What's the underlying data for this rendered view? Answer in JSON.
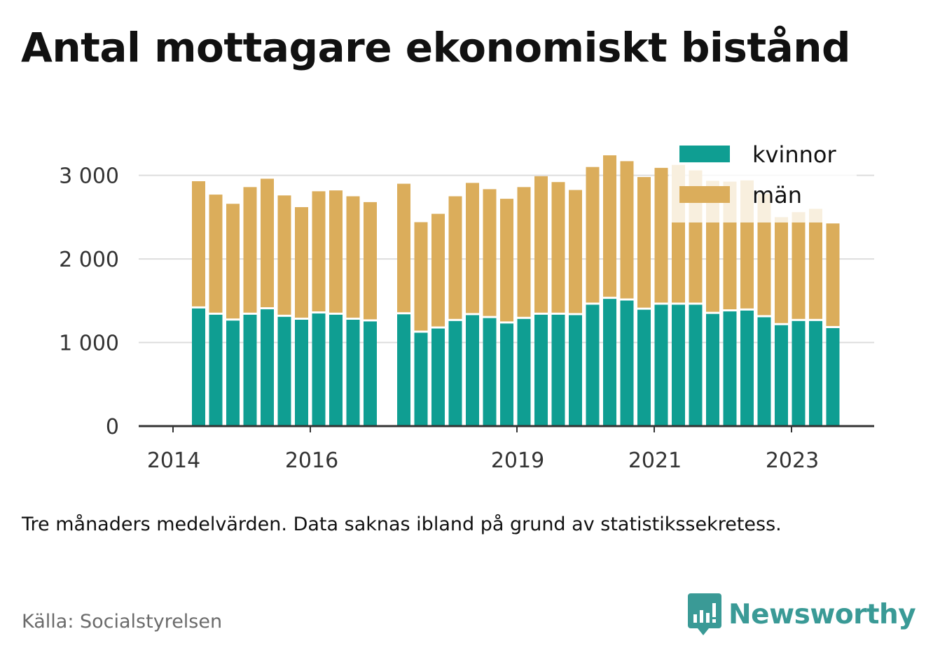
{
  "title": "Antal mottagare ekonomiskt bistånd",
  "note": "Tre månaders medelvärden. Data saknas ibland på grund av statistikssekretess.",
  "source": "Källa: Socialstyrelsen",
  "brand": {
    "name": "Newsworthy",
    "icon": "newsworthy-logo-icon",
    "color": "#3a9a96"
  },
  "colors": {
    "kvinnor": "#0f9e92",
    "man": "#dbad5b",
    "grid": "#dddddd",
    "axis": "#333333"
  },
  "chart_data": {
    "type": "bar",
    "stacked": true,
    "x_tick_labels": [
      "2014",
      "2016",
      "2019",
      "2021",
      "2023"
    ],
    "y_ticks": [
      0,
      1000,
      2000,
      3000
    ],
    "y_tick_labels": [
      "0",
      "1 000",
      "2 000",
      "3 000"
    ],
    "ylim": [
      0,
      3300
    ],
    "grid": true,
    "legend_position": "top-right",
    "series": [
      {
        "name": "kvinnor",
        "key": "kvinnor"
      },
      {
        "name": "män",
        "key": "man"
      }
    ],
    "groups": [
      {
        "bars": [
          {
            "kvinnor": 1420,
            "total": 2930
          },
          {
            "kvinnor": 1345,
            "total": 2770
          },
          {
            "kvinnor": 1275,
            "total": 2660
          },
          {
            "kvinnor": 1345,
            "total": 2860
          },
          {
            "kvinnor": 1410,
            "total": 2960
          },
          {
            "kvinnor": 1320,
            "total": 2760
          },
          {
            "kvinnor": 1285,
            "total": 2620
          },
          {
            "kvinnor": 1360,
            "total": 2810
          },
          {
            "kvinnor": 1345,
            "total": 2820
          },
          {
            "kvinnor": 1285,
            "total": 2750
          },
          {
            "kvinnor": 1265,
            "total": 2680
          }
        ]
      },
      {
        "bars": [
          {
            "kvinnor": 1350,
            "total": 2900
          },
          {
            "kvinnor": 1130,
            "total": 2440
          },
          {
            "kvinnor": 1180,
            "total": 2540
          },
          {
            "kvinnor": 1270,
            "total": 2750
          },
          {
            "kvinnor": 1340,
            "total": 2910
          },
          {
            "kvinnor": 1305,
            "total": 2835
          },
          {
            "kvinnor": 1240,
            "total": 2720
          },
          {
            "kvinnor": 1295,
            "total": 2860
          },
          {
            "kvinnor": 1345,
            "total": 2990
          },
          {
            "kvinnor": 1345,
            "total": 2920
          },
          {
            "kvinnor": 1340,
            "total": 2825
          },
          {
            "kvinnor": 1465,
            "total": 3100
          },
          {
            "kvinnor": 1535,
            "total": 3240
          },
          {
            "kvinnor": 1515,
            "total": 3170
          },
          {
            "kvinnor": 1405,
            "total": 2980
          },
          {
            "kvinnor": 1465,
            "total": 3090
          },
          {
            "kvinnor": 1465,
            "total": 3125
          },
          {
            "kvinnor": 1465,
            "total": 3060
          },
          {
            "kvinnor": 1355,
            "total": 2935
          },
          {
            "kvinnor": 1385,
            "total": 2925
          },
          {
            "kvinnor": 1395,
            "total": 2940
          },
          {
            "kvinnor": 1315,
            "total": 2780
          },
          {
            "kvinnor": 1220,
            "total": 2500
          },
          {
            "kvinnor": 1270,
            "total": 2560
          },
          {
            "kvinnor": 1270,
            "total": 2600
          },
          {
            "kvinnor": 1185,
            "total": 2425
          }
        ]
      }
    ]
  }
}
